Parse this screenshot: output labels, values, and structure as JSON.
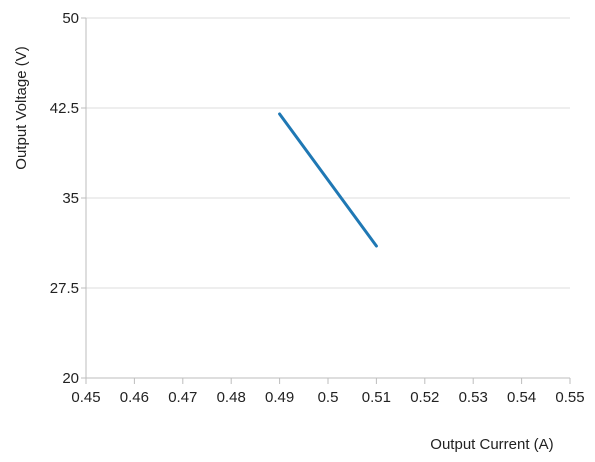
{
  "chart_data": {
    "type": "line",
    "title": "",
    "xlabel": "Output Current (A)",
    "ylabel": "Output Voltage (V)",
    "xlim": [
      0.45,
      0.55
    ],
    "ylim": [
      20,
      50
    ],
    "xticks": [
      "0.45",
      "0.46",
      "0.47",
      "0.48",
      "0.49",
      "0.5",
      "0.51",
      "0.52",
      "0.53",
      "0.54",
      "0.55"
    ],
    "yticks": [
      "20",
      "27.5",
      "35",
      "42.5",
      "50"
    ],
    "grid": "horizontal",
    "legend": "none",
    "series": [
      {
        "color": "#1f78b4",
        "x": [
          0.49,
          0.51
        ],
        "y": [
          42,
          31
        ]
      }
    ]
  }
}
